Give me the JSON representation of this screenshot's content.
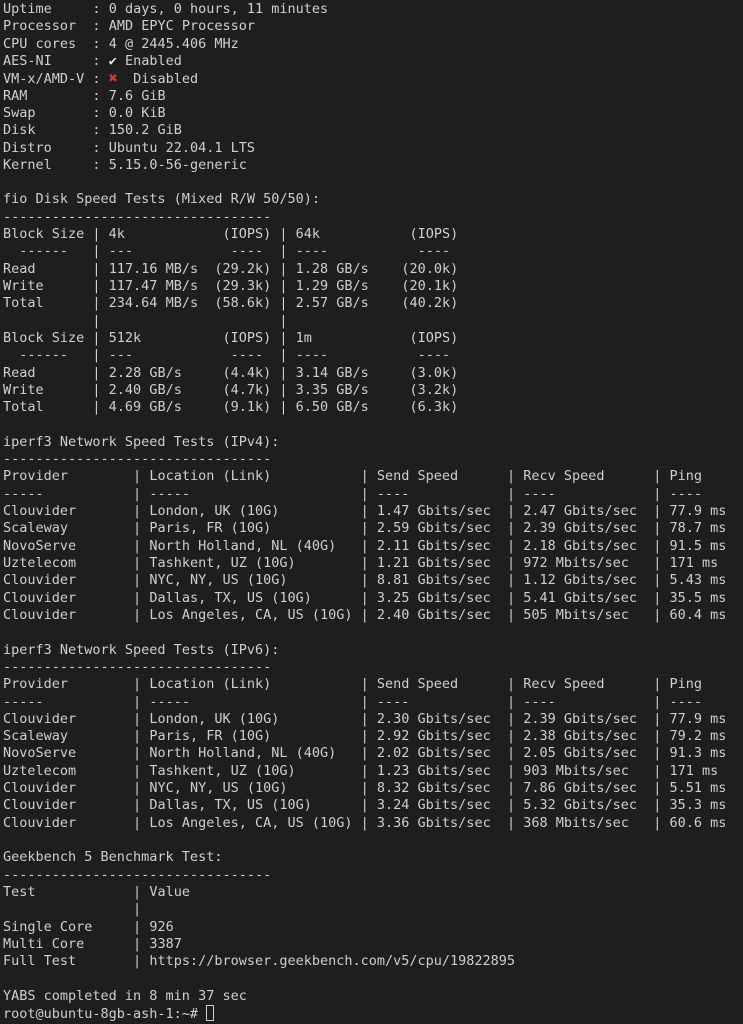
{
  "colors": {
    "background": "#1e1e1e",
    "text": "#cfcfcf",
    "error_icon": "#e0312b"
  },
  "system_info": [
    {
      "label": "Uptime",
      "value": "0 days, 0 hours, 11 minutes"
    },
    {
      "label": "Processor",
      "value": "AMD EPYC Processor"
    },
    {
      "label": "CPU cores",
      "value": "4 @ 2445.406 MHz"
    },
    {
      "label": "AES-NI",
      "icon": "check-icon",
      "value": "Enabled"
    },
    {
      "label": "VM-x/AMD-V",
      "icon": "cross-icon",
      "value": "Disabled"
    },
    {
      "label": "RAM",
      "value": "7.6 GiB"
    },
    {
      "label": "Swap",
      "value": "0.0 KiB"
    },
    {
      "label": "Disk",
      "value": "150.2 GiB"
    },
    {
      "label": "Distro",
      "value": "Ubuntu 22.04.1 LTS"
    },
    {
      "label": "Kernel",
      "value": "5.15.0-56-generic"
    }
  ],
  "fio": {
    "title": "fio Disk Speed Tests (Mixed R/W 50/50):",
    "dashes": "---------------------------------",
    "header_label": "Block Size",
    "iops_label": "(IOPS)",
    "dash_row": [
      "  ------",
      "---",
      "----",
      "----",
      "----"
    ],
    "tables": [
      {
        "block_sizes": [
          "4k",
          "64k"
        ],
        "rows": [
          {
            "label": "Read",
            "cells": [
              {
                "speed": "117.16 MB/s",
                "iops": "(29.2k)"
              },
              {
                "speed": "1.28 GB/s",
                "iops": "(20.0k)"
              }
            ]
          },
          {
            "label": "Write",
            "cells": [
              {
                "speed": "117.47 MB/s",
                "iops": "(29.3k)"
              },
              {
                "speed": "1.29 GB/s",
                "iops": "(20.1k)"
              }
            ]
          },
          {
            "label": "Total",
            "cells": [
              {
                "speed": "234.64 MB/s",
                "iops": "(58.6k)"
              },
              {
                "speed": "2.57 GB/s",
                "iops": "(40.2k)"
              }
            ]
          }
        ]
      },
      {
        "block_sizes": [
          "512k",
          "1m"
        ],
        "rows": [
          {
            "label": "Read",
            "cells": [
              {
                "speed": "2.28 GB/s",
                "iops": "(4.4k)"
              },
              {
                "speed": "3.14 GB/s",
                "iops": "(3.0k)"
              }
            ]
          },
          {
            "label": "Write",
            "cells": [
              {
                "speed": "2.40 GB/s",
                "iops": "(4.7k)"
              },
              {
                "speed": "3.35 GB/s",
                "iops": "(3.2k)"
              }
            ]
          },
          {
            "label": "Total",
            "cells": [
              {
                "speed": "4.69 GB/s",
                "iops": "(9.1k)"
              },
              {
                "speed": "6.50 GB/s",
                "iops": "(6.3k)"
              }
            ]
          }
        ]
      }
    ]
  },
  "iperf": [
    {
      "title": "iperf3 Network Speed Tests (IPv4):",
      "dashes": "---------------------------------",
      "headers": [
        "Provider",
        "Location (Link)",
        "Send Speed",
        "Recv Speed",
        "Ping"
      ],
      "dash_row": [
        "-----",
        "-----",
        "----",
        "----",
        "----"
      ],
      "rows": [
        [
          "Clouvider",
          "London, UK (10G)",
          "1.47 Gbits/sec",
          "2.47 Gbits/sec",
          "77.9 ms"
        ],
        [
          "Scaleway",
          "Paris, FR (10G)",
          "2.59 Gbits/sec",
          "2.39 Gbits/sec",
          "78.7 ms"
        ],
        [
          "NovoServe",
          "North Holland, NL (40G)",
          "2.11 Gbits/sec",
          "2.18 Gbits/sec",
          "91.5 ms"
        ],
        [
          "Uztelecom",
          "Tashkent, UZ (10G)",
          "1.21 Gbits/sec",
          "972 Mbits/sec",
          "171 ms"
        ],
        [
          "Clouvider",
          "NYC, NY, US (10G)",
          "8.81 Gbits/sec",
          "1.12 Gbits/sec",
          "5.43 ms"
        ],
        [
          "Clouvider",
          "Dallas, TX, US (10G)",
          "3.25 Gbits/sec",
          "5.41 Gbits/sec",
          "35.5 ms"
        ],
        [
          "Clouvider",
          "Los Angeles, CA, US (10G)",
          "2.40 Gbits/sec",
          "505 Mbits/sec",
          "60.4 ms"
        ]
      ]
    },
    {
      "title": "iperf3 Network Speed Tests (IPv6):",
      "dashes": "---------------------------------",
      "headers": [
        "Provider",
        "Location (Link)",
        "Send Speed",
        "Recv Speed",
        "Ping"
      ],
      "dash_row": [
        "-----",
        "-----",
        "----",
        "----",
        "----"
      ],
      "rows": [
        [
          "Clouvider",
          "London, UK (10G)",
          "2.30 Gbits/sec",
          "2.39 Gbits/sec",
          "77.9 ms"
        ],
        [
          "Scaleway",
          "Paris, FR (10G)",
          "2.92 Gbits/sec",
          "2.38 Gbits/sec",
          "79.2 ms"
        ],
        [
          "NovoServe",
          "North Holland, NL (40G)",
          "2.02 Gbits/sec",
          "2.05 Gbits/sec",
          "91.3 ms"
        ],
        [
          "Uztelecom",
          "Tashkent, UZ (10G)",
          "1.23 Gbits/sec",
          "903 Mbits/sec",
          "171 ms"
        ],
        [
          "Clouvider",
          "NYC, NY, US (10G)",
          "8.32 Gbits/sec",
          "7.86 Gbits/sec",
          "5.51 ms"
        ],
        [
          "Clouvider",
          "Dallas, TX, US (10G)",
          "3.24 Gbits/sec",
          "5.32 Gbits/sec",
          "35.3 ms"
        ],
        [
          "Clouvider",
          "Los Angeles, CA, US (10G)",
          "3.36 Gbits/sec",
          "368 Mbits/sec",
          "60.6 ms"
        ]
      ]
    }
  ],
  "geekbench": {
    "title": "Geekbench 5 Benchmark Test:",
    "dashes": "---------------------------------",
    "headers": [
      "Test",
      "Value"
    ],
    "rows": [
      [
        "Single Core",
        "926"
      ],
      [
        "Multi Core",
        "3387"
      ],
      [
        "Full Test",
        "https://browser.geekbench.com/v5/cpu/19822895"
      ]
    ]
  },
  "completion": "YABS completed in 8 min 37 sec",
  "prompt": "root@ubuntu-8gb-ash-1:~#"
}
